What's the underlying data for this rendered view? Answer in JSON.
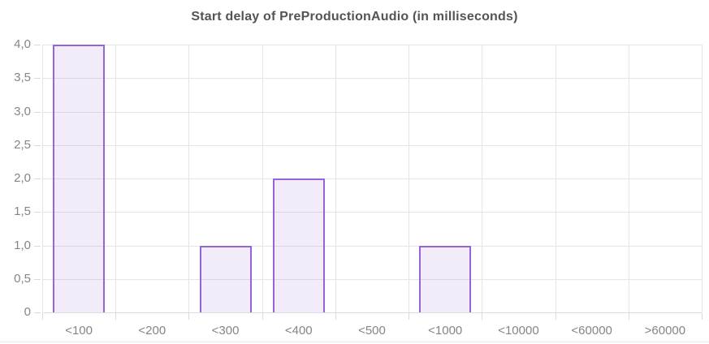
{
  "chart_data": {
    "type": "bar",
    "title": "Start delay of PreProductionAudio (in milliseconds)",
    "categories": [
      "<100",
      "<200",
      "<300",
      "<400",
      "<500",
      "<1000",
      "<10000",
      "<60000",
      ">60000"
    ],
    "values": [
      4,
      0,
      1,
      2,
      0,
      1,
      0,
      0,
      0
    ],
    "xlabel": "",
    "ylabel": "",
    "ylim": [
      0,
      4
    ],
    "y_tick_values": [
      0,
      0.5,
      1,
      1.5,
      2,
      2.5,
      3,
      3.5,
      4
    ],
    "y_tick_labels": [
      "0",
      "0,5",
      "1,0",
      "1,5",
      "2,0",
      "2,5",
      "3,0",
      "3,5",
      "4,0"
    ],
    "decimal_separator": ",",
    "grid": true,
    "legend": false
  },
  "colors": {
    "background": "#ffffff",
    "title": "#545454",
    "axis_label": "#858585",
    "gridline": "#e5e5e5",
    "axis_line": "#dcdcdc",
    "tick": "#d9d9d9",
    "bar_border": "#9565d8",
    "bar_fill": "rgba(149,101,216,0.13)",
    "bottom_divider": "#e9e7ef"
  }
}
